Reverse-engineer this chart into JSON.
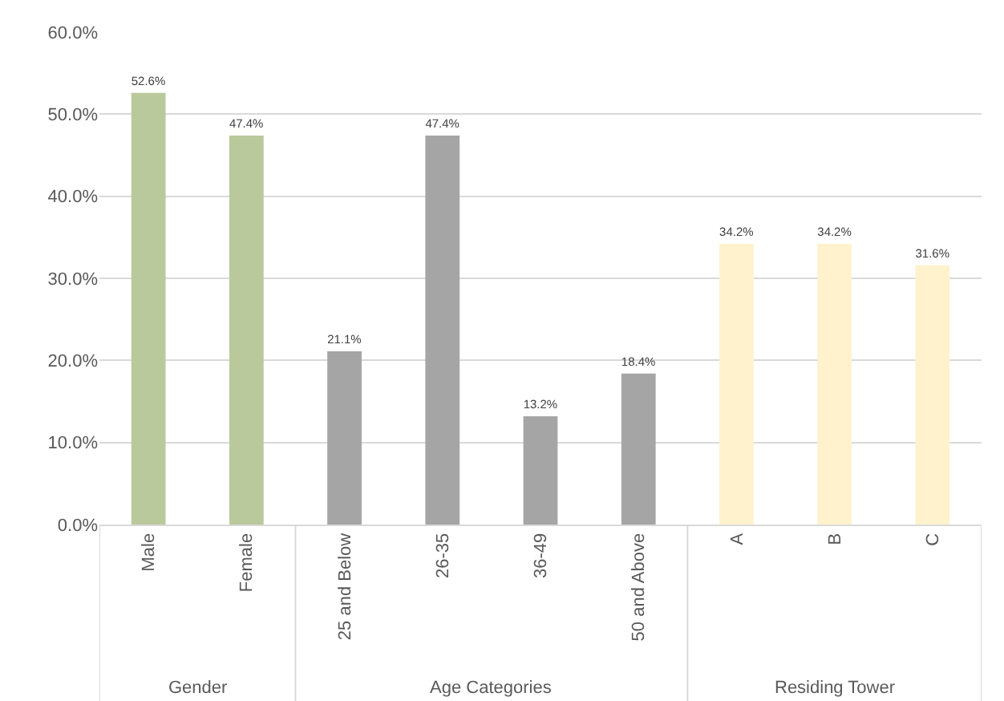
{
  "chart_data": {
    "type": "bar",
    "categories": [
      "Male",
      "Female",
      "25 and Below",
      "26-35",
      "36-49",
      "50 and Above",
      "A",
      "B",
      "C"
    ],
    "values": [
      52.6,
      47.4,
      21.1,
      47.4,
      13.2,
      18.4,
      34.2,
      34.2,
      31.6
    ],
    "colors": [
      "#b9c99c",
      "#b9c99c",
      "#a5a5a5",
      "#a5a5a5",
      "#a5a5a5",
      "#a5a5a5",
      "#fff2cc",
      "#fff2cc",
      "#fff2cc"
    ],
    "value_labels": [
      "52.6%",
      "47.4%",
      "21.1%",
      "47.4%",
      "13.2%",
      "18.4%",
      "34.2%",
      "34.2%",
      "31.6%"
    ],
    "ylim": [
      0,
      60
    ],
    "yticks": [
      {
        "value": 0,
        "label": "0.0%"
      },
      {
        "value": 10,
        "label": "10.0%"
      },
      {
        "value": 20,
        "label": "20.0%"
      },
      {
        "value": 30,
        "label": "30.0%"
      },
      {
        "value": 40,
        "label": "40.0%"
      },
      {
        "value": 50,
        "label": "50.0%"
      },
      {
        "value": 60,
        "label": "60.0%"
      }
    ],
    "grid": "y",
    "annotations": [
      "Gender",
      "Age Categories",
      "Residing Tower"
    ]
  }
}
